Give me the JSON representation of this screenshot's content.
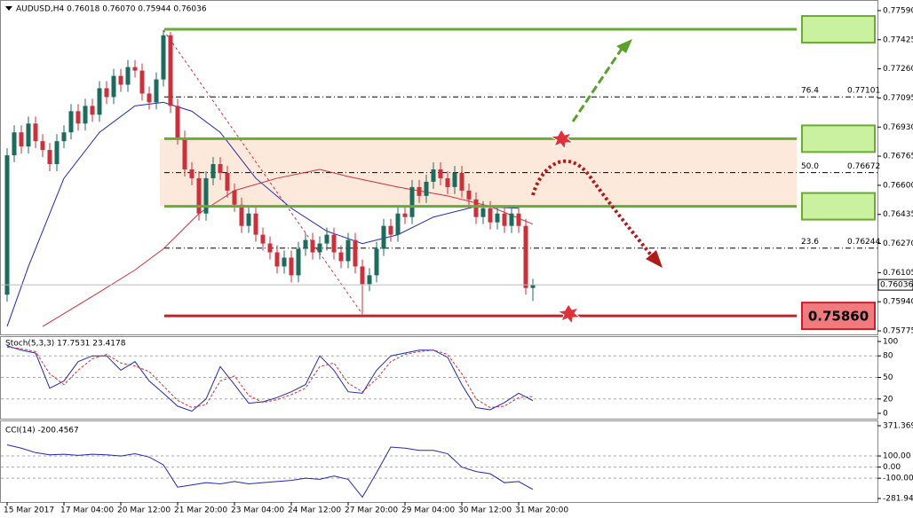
{
  "chart_data": [
    {
      "type": "candlestick",
      "title": "AUDUSD,H4  0.76018 0.76070 0.75944 0.76036",
      "open": [
        0.7598,
        0.7677,
        0.769,
        0.7682,
        0.7695,
        0.7685,
        0.768,
        0.7672,
        0.7685,
        0.769,
        0.7702,
        0.7695,
        0.7705,
        0.77,
        0.7715,
        0.771,
        0.7722,
        0.7717,
        0.7727,
        0.7725,
        0.7712,
        0.7707,
        0.772,
        0.7745,
        0.7705,
        0.7687,
        0.7669,
        0.7664,
        0.7644,
        0.7664,
        0.7672,
        0.7667,
        0.7657,
        0.7649,
        0.7637,
        0.7644,
        0.7632,
        0.7627,
        0.7622,
        0.7614,
        0.7619,
        0.7609,
        0.7624,
        0.7629,
        0.7622,
        0.7627,
        0.7632,
        0.7622,
        0.7617,
        0.7629,
        0.7614,
        0.7604,
        0.7609,
        0.7624,
        0.7637,
        0.7632,
        0.7644,
        0.7642,
        0.7659,
        0.7654,
        0.7662,
        0.7669,
        0.7664,
        0.7659,
        0.7667,
        0.7657,
        0.7652,
        0.7642,
        0.7647,
        0.7639,
        0.7644,
        0.7637,
        0.7644,
        0.7637,
        0.76018
      ],
      "high": [
        0.7681,
        0.7694,
        0.7694,
        0.7699,
        0.7699,
        0.7689,
        0.7684,
        0.7689,
        0.7694,
        0.7706,
        0.7706,
        0.7709,
        0.7709,
        0.7719,
        0.7719,
        0.7726,
        0.7726,
        0.7731,
        0.7731,
        0.7729,
        0.7716,
        0.7724,
        0.7748,
        0.7747,
        0.7709,
        0.7691,
        0.7673,
        0.7668,
        0.7668,
        0.7676,
        0.7676,
        0.7671,
        0.7661,
        0.7653,
        0.7648,
        0.7648,
        0.7636,
        0.7631,
        0.7626,
        0.7623,
        0.7623,
        0.7628,
        0.7633,
        0.7633,
        0.7631,
        0.7636,
        0.7636,
        0.7626,
        0.7633,
        0.7633,
        0.7618,
        0.7613,
        0.7628,
        0.7641,
        0.7641,
        0.7648,
        0.7648,
        0.7663,
        0.7663,
        0.7666,
        0.7673,
        0.7673,
        0.7668,
        0.7671,
        0.7671,
        0.7661,
        0.7656,
        0.7651,
        0.7651,
        0.7648,
        0.7648,
        0.7648,
        0.7648,
        0.7641,
        0.7607
      ],
      "low": [
        0.7594,
        0.7673,
        0.7678,
        0.7678,
        0.7681,
        0.7676,
        0.7668,
        0.7668,
        0.7681,
        0.7686,
        0.7691,
        0.7691,
        0.7696,
        0.7696,
        0.7706,
        0.7706,
        0.7713,
        0.7713,
        0.7721,
        0.7708,
        0.7703,
        0.7703,
        0.7716,
        0.7701,
        0.7683,
        0.7665,
        0.766,
        0.764,
        0.764,
        0.766,
        0.7663,
        0.7653,
        0.7645,
        0.7633,
        0.7633,
        0.7628,
        0.7623,
        0.7618,
        0.761,
        0.761,
        0.7605,
        0.7605,
        0.762,
        0.7618,
        0.7618,
        0.7623,
        0.7618,
        0.7613,
        0.7613,
        0.761,
        0.7587,
        0.76,
        0.7605,
        0.762,
        0.7628,
        0.7628,
        0.7638,
        0.7638,
        0.765,
        0.765,
        0.7658,
        0.766,
        0.7655,
        0.7655,
        0.7653,
        0.7648,
        0.7638,
        0.7638,
        0.7635,
        0.7635,
        0.7633,
        0.7633,
        0.7633,
        0.7598,
        0.75944
      ],
      "close": [
        0.7677,
        0.769,
        0.7682,
        0.7695,
        0.7685,
        0.768,
        0.7672,
        0.7685,
        0.769,
        0.7702,
        0.7695,
        0.7705,
        0.77,
        0.7715,
        0.771,
        0.7722,
        0.7717,
        0.7727,
        0.7725,
        0.7712,
        0.7707,
        0.772,
        0.7745,
        0.7705,
        0.7687,
        0.7669,
        0.7664,
        0.7644,
        0.7664,
        0.7672,
        0.7667,
        0.7657,
        0.7649,
        0.7637,
        0.7644,
        0.7632,
        0.7627,
        0.7622,
        0.7614,
        0.7619,
        0.7609,
        0.7624,
        0.7629,
        0.7622,
        0.7627,
        0.7632,
        0.7622,
        0.7617,
        0.7629,
        0.7614,
        0.7604,
        0.7609,
        0.7624,
        0.7637,
        0.7632,
        0.7644,
        0.7642,
        0.7659,
        0.7654,
        0.7662,
        0.7669,
        0.7664,
        0.7659,
        0.7667,
        0.7657,
        0.7652,
        0.7642,
        0.7647,
        0.7639,
        0.7644,
        0.7637,
        0.7644,
        0.7637,
        0.76018,
        0.76036
      ],
      "up_color": "#1d6b5c",
      "down_color": "#c8323c",
      "ylim": [
        0.7575,
        0.7763
      ],
      "yticks": [
        {
          "value": 0.7759,
          "label": "0.77590"
        },
        0.77425,
        {
          "value": 0.7726,
          "label": "0.77260"
        },
        0.77095,
        {
          "value": 0.7693,
          "label": "0.76930"
        },
        0.76765,
        {
          "value": 0.766,
          "label": "0.76600"
        },
        0.76435,
        {
          "value": 0.7627,
          "label": "0.76270"
        },
        0.76105,
        {
          "value": 0.7594,
          "label": "0.75940"
        },
        0.75775
      ],
      "xticks": [
        {
          "value": 0,
          "label": "15 Mar 2017"
        },
        {
          "value": 8,
          "label": "17 Mar 04:00"
        },
        {
          "value": 16,
          "label": "20 Mar 12:00"
        },
        {
          "value": 24,
          "label": "21 Mar 20:00"
        },
        {
          "value": 32,
          "label": "23 Mar 04:00"
        },
        {
          "value": 40,
          "label": "24 Mar 12:00"
        },
        {
          "value": 48,
          "label": "27 Mar 20:00"
        },
        {
          "value": 56,
          "label": "29 Mar 04:00"
        },
        {
          "value": 64,
          "label": "30 Mar 12:00"
        },
        {
          "value": 72,
          "label": "31 Mar 20:00"
        }
      ],
      "levels": [
        {
          "value": 0.77484,
          "color": "#6aaa35"
        },
        {
          "value": 0.76864,
          "color": "#6aaa35"
        },
        {
          "value": 0.76481,
          "color": "#6aaa35"
        },
        {
          "value": 0.7586,
          "label": "0.75860",
          "color": "#c8202a"
        }
      ],
      "zone": [
        0.76481,
        0.76864
      ],
      "zone_color": "#fde3d3",
      "fib": [
        {
          "level": "76.4",
          "value": 0.77101
        },
        {
          "level": "50.0",
          "value": 0.76672
        },
        {
          "level": "23.6",
          "value": 0.76244
        }
      ],
      "fib_line": {
        "x": [
          22,
          50
        ],
        "values": [
          0.7748,
          0.7587
        ]
      },
      "current": 0.76036,
      "moving_averages": [
        {
          "color": "#1f2ab0",
          "x": [
            0,
            3,
            8,
            13,
            18,
            22,
            26,
            30,
            35,
            40,
            45,
            50,
            55,
            60,
            66,
            72
          ],
          "values": [
            0.758,
            0.7614,
            0.7664,
            0.769,
            0.7705,
            0.7707,
            0.7702,
            0.769,
            0.7664,
            0.7647,
            0.7634,
            0.7627,
            0.7632,
            0.7642,
            0.7648,
            0.7647
          ]
        },
        {
          "color": "#d0303a",
          "x": [
            5,
            12,
            18,
            22,
            27,
            32,
            38,
            44,
            48,
            55,
            62,
            68,
            74
          ],
          "values": [
            0.758,
            0.7597,
            0.7612,
            0.7624,
            0.7644,
            0.7657,
            0.7664,
            0.7669,
            0.7665,
            0.7659,
            0.7654,
            0.7648,
            0.7638
          ]
        }
      ]
    },
    {
      "type": "line",
      "title": "Stoch(5,3,3) 17.7531 23.4178",
      "x": [
        0,
        2,
        4,
        6,
        8,
        10,
        12,
        14,
        16,
        18,
        20,
        22,
        24,
        26,
        28,
        30,
        32,
        34,
        36,
        38,
        40,
        42,
        44,
        46,
        48,
        50,
        52,
        54,
        56,
        58,
        60,
        62,
        64,
        66,
        68,
        70,
        72,
        74
      ],
      "series": [
        {
          "color": "#1f2ab0",
          "values": [
            94,
            88,
            84,
            35,
            45,
            72,
            80,
            80,
            60,
            72,
            45,
            28,
            10,
            3,
            20,
            65,
            40,
            14,
            16,
            22,
            30,
            40,
            80,
            60,
            30,
            28,
            60,
            80,
            84,
            88,
            88,
            78,
            40,
            8,
            5,
            15,
            28,
            17.7531
          ]
        },
        {
          "color": "#d0303a",
          "dashed": true,
          "values": [
            92,
            90,
            86,
            55,
            40,
            60,
            76,
            82,
            70,
            66,
            58,
            38,
            18,
            8,
            12,
            45,
            52,
            25,
            15,
            19,
            26,
            35,
            65,
            70,
            42,
            30,
            48,
            72,
            82,
            86,
            88,
            82,
            55,
            20,
            8,
            10,
            22,
            23.4178
          ]
        }
      ],
      "ylim": [
        0,
        100
      ],
      "yticks": [
        0,
        20,
        50,
        80,
        100
      ]
    },
    {
      "type": "line",
      "title": "CCI(14) -200.4567",
      "x": [
        0,
        2,
        4,
        6,
        8,
        10,
        12,
        14,
        16,
        18,
        20,
        22,
        24,
        26,
        28,
        30,
        32,
        34,
        36,
        38,
        40,
        42,
        44,
        46,
        48,
        50,
        52,
        54,
        56,
        58,
        60,
        62,
        64,
        66,
        68,
        70,
        72,
        74
      ],
      "series": [
        {
          "color": "#1f2ab0",
          "values": [
            200,
            170,
            130,
            110,
            115,
            105,
            115,
            110,
            100,
            120,
            90,
            20,
            -180,
            -160,
            -140,
            -150,
            -130,
            -150,
            -140,
            -130,
            -120,
            -100,
            -110,
            -80,
            -110,
            -270,
            -50,
            180,
            170,
            150,
            150,
            120,
            0,
            -40,
            -60,
            -140,
            -130,
            -200.4567
          ]
        }
      ],
      "ylim": [
        -281.9449,
        371.3698
      ],
      "yticks": [
        -281.9449,
        {
          "value": -100,
          "label": "-100.00"
        },
        {
          "value": 0,
          "label": "0.00"
        },
        {
          "value": 100,
          "label": "100.00"
        },
        371.3698
      ]
    }
  ]
}
